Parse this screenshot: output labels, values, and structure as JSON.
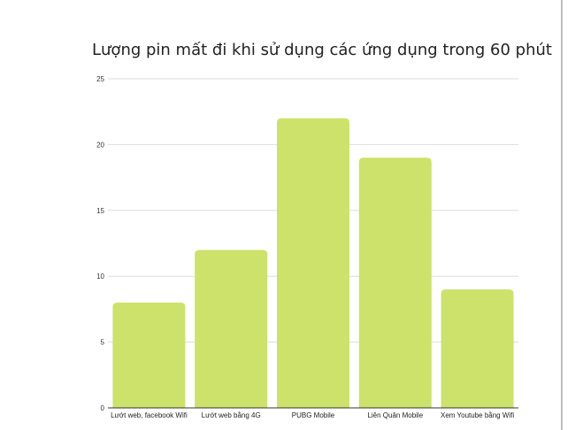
{
  "chart_data": {
    "type": "bar",
    "title": "Lượng pin mất đi khi sử dụng các ứng dụng trong 60 phút",
    "categories": [
      "Lướt web, facebook Wifi",
      "Lướt web bằng 4G",
      "PUBG Mobile",
      "Liên Quân Mobile",
      "Xem Youtube bằng Wifi"
    ],
    "values": [
      8,
      12,
      22,
      19,
      9
    ],
    "ylim": [
      0,
      25
    ],
    "yticks": [
      0,
      5,
      10,
      15,
      20,
      25
    ],
    "xlabel": "",
    "ylabel": "",
    "grid": true,
    "legend": "none",
    "bar_color": "#cce26a",
    "grid_color": "#dddddd",
    "axis_color": "#333333"
  }
}
